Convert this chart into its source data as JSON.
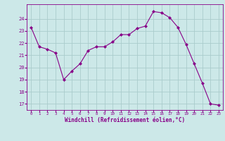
{
  "x": [
    0,
    1,
    2,
    3,
    4,
    5,
    6,
    7,
    8,
    9,
    10,
    11,
    12,
    13,
    14,
    15,
    16,
    17,
    18,
    19,
    20,
    21,
    22,
    23
  ],
  "y": [
    23.3,
    21.7,
    21.5,
    21.2,
    19.0,
    19.7,
    20.3,
    21.4,
    21.7,
    21.7,
    22.1,
    22.7,
    22.7,
    23.2,
    23.4,
    24.6,
    24.5,
    24.1,
    23.3,
    21.9,
    20.3,
    18.7,
    17.0,
    16.9
  ],
  "ylim": [
    16.5,
    25.2
  ],
  "yticks": [
    17,
    18,
    19,
    20,
    21,
    22,
    23,
    24
  ],
  "xlabel": "Windchill (Refroidissement éolien,°C)",
  "line_color": "#880088",
  "marker": "D",
  "marker_size": 2.0,
  "bg_color": "#cce8e8",
  "grid_color": "#aacccc",
  "tick_color": "#880088",
  "label_color": "#880088",
  "font": "monospace"
}
